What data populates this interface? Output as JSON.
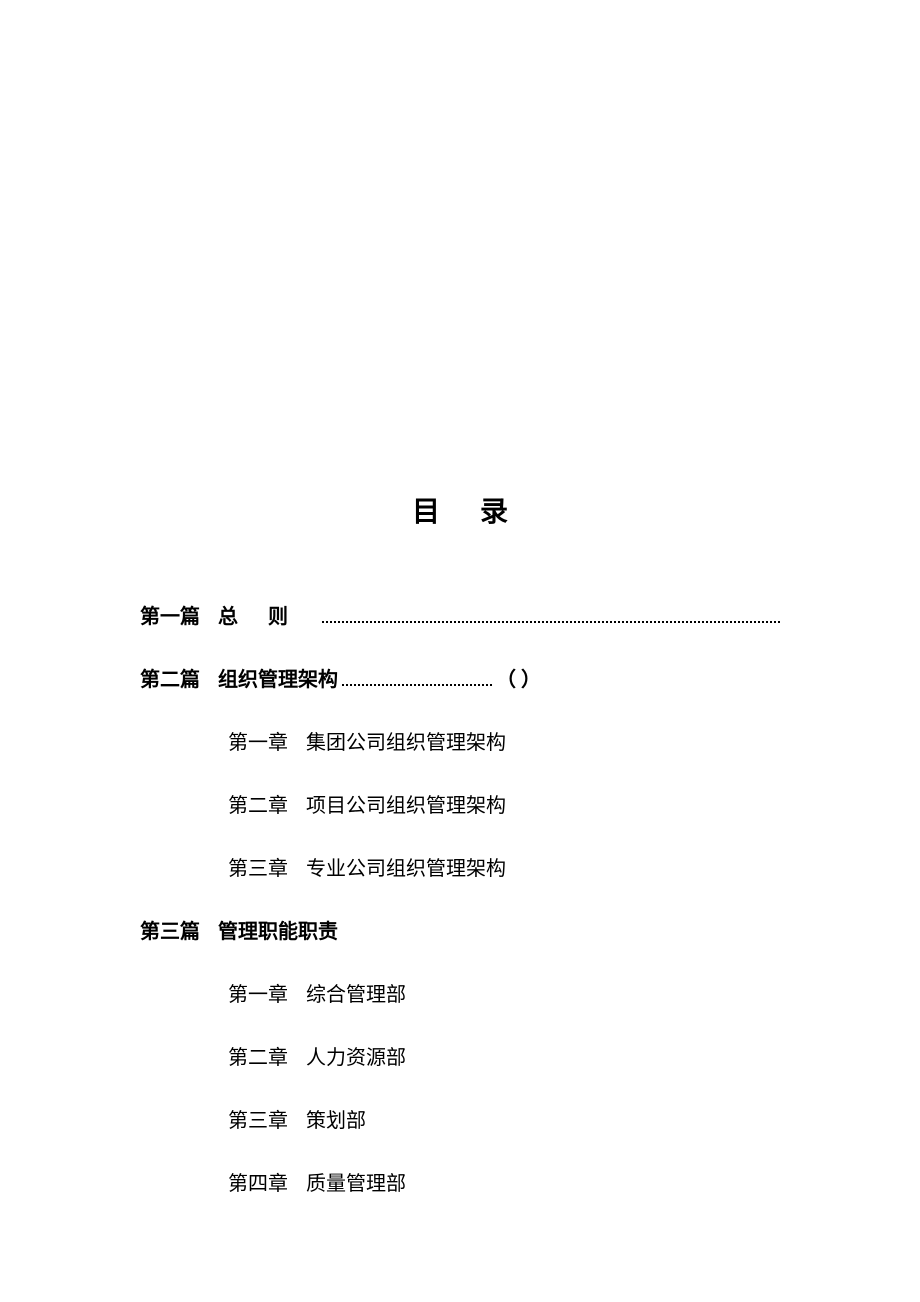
{
  "title": "目录",
  "colors": {
    "background": "#ffffff",
    "text": "#000000",
    "leader": "#000000"
  },
  "typography": {
    "title_fontsize": 28,
    "entry_fontsize": 20,
    "font_family": "SimSun"
  },
  "toc": {
    "part1": {
      "label": "第一篇",
      "title": "总则"
    },
    "part2": {
      "label": "第二篇",
      "title": "组织管理架构",
      "page": "（ ）",
      "chapters": {
        "ch1": {
          "label": "第一章",
          "title": "集团公司组织管理架构"
        },
        "ch2": {
          "label": "第二章",
          "title": "项目公司组织管理架构"
        },
        "ch3": {
          "label": "第三章",
          "title": "专业公司组织管理架构"
        }
      }
    },
    "part3": {
      "label": "第三篇",
      "title": "管理职能职责",
      "chapters": {
        "ch1": {
          "label": "第一章",
          "title": "综合管理部"
        },
        "ch2": {
          "label": "第二章",
          "title": "人力资源部"
        },
        "ch3": {
          "label": "第三章",
          "title": "策划部"
        },
        "ch4": {
          "label": "第四章",
          "title": "质量管理部"
        }
      }
    }
  }
}
